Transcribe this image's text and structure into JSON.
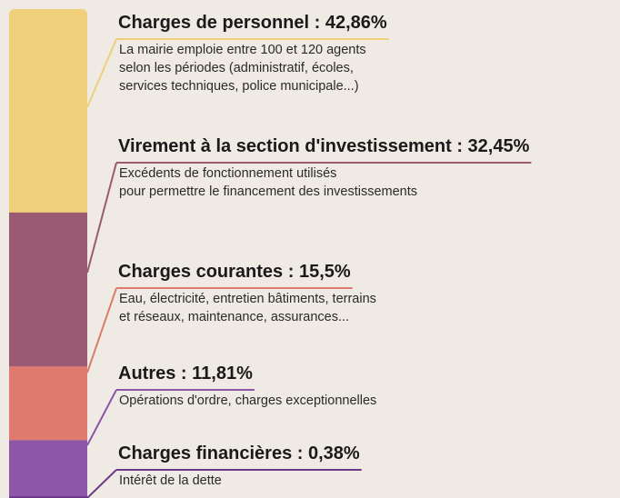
{
  "chart_data": {
    "type": "stacked-bar",
    "separator": " : ",
    "series": [
      {
        "name": "Charges de personnel",
        "values": [
          42.86
        ],
        "value_labels": [
          "42,86%"
        ],
        "color": "#efcf79",
        "description": [
          "La mairie emploie entre 100 et 120 agents",
          "selon les périodes (administratif, écoles,",
          "services techniques, police municipale...)"
        ]
      },
      {
        "name": "Virement à la section d'investissement",
        "values": [
          32.45
        ],
        "value_labels": [
          "32,45%"
        ],
        "color": "#995a72",
        "description": [
          "Excédents de fonctionnement utilisés",
          "pour permettre le financement des investissements"
        ]
      },
      {
        "name": "Charges courantes",
        "values": [
          15.5
        ],
        "value_labels": [
          "15,5%"
        ],
        "color": "#de7a6e",
        "description": [
          "Eau, électricité, entretien bâtiments, terrains",
          "et réseaux, maintenance, assurances..."
        ]
      },
      {
        "name": "Autres",
        "values": [
          11.81
        ],
        "value_labels": [
          "11,81%"
        ],
        "color": "#8d56a6",
        "description": [
          "Opérations d'ordre, charges exceptionnelles"
        ]
      },
      {
        "name": "Charges financières",
        "values": [
          0.38
        ],
        "value_labels": [
          "0,38%"
        ],
        "color": "#6b3a8c",
        "description": [
          "Intérêt de la dette"
        ]
      }
    ]
  }
}
